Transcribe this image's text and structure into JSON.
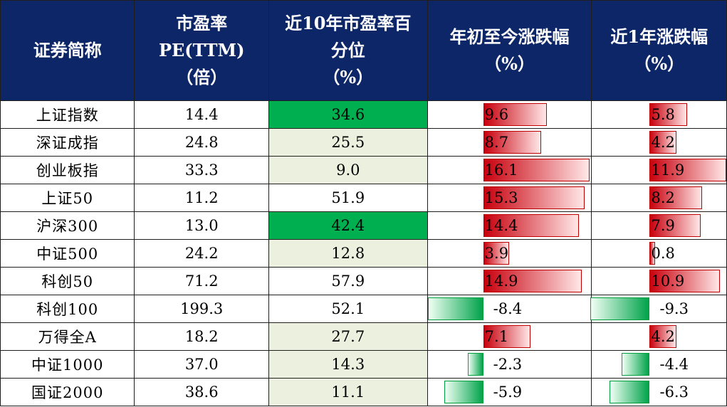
{
  "headers": [
    [
      "证券简称"
    ],
    [
      "市盈率",
      "PE(TTM)",
      "（倍）"
    ],
    [
      "近10年市盈率百",
      "分位",
      "（%）"
    ],
    [
      "年初至今涨跌幅",
      "（%）"
    ],
    [
      "近1年涨跌幅",
      "（%）"
    ]
  ],
  "rows": [
    {
      "name": "上证指数",
      "pe": "14.4",
      "pct": "34.6",
      "pct_fill": "dark",
      "ytd": "9.6",
      "yr": "5.8"
    },
    {
      "name": "深证成指",
      "pe": "24.8",
      "pct": "25.5",
      "pct_fill": "light",
      "ytd": "8.7",
      "yr": "4.2"
    },
    {
      "name": "创业板指",
      "pe": "33.3",
      "pct": "9.0",
      "pct_fill": "light",
      "ytd": "16.1",
      "yr": "11.9"
    },
    {
      "name": "上证50",
      "pe": "11.2",
      "pct": "51.9",
      "pct_fill": "white",
      "ytd": "15.3",
      "yr": "8.2"
    },
    {
      "name": "沪深300",
      "pe": "13.0",
      "pct": "42.4",
      "pct_fill": "dark",
      "ytd": "14.4",
      "yr": "7.9"
    },
    {
      "name": "中证500",
      "pe": "24.2",
      "pct": "12.8",
      "pct_fill": "light",
      "ytd": "3.9",
      "yr": "0.8"
    },
    {
      "name": "科创50",
      "pe": "71.2",
      "pct": "57.9",
      "pct_fill": "white",
      "ytd": "14.9",
      "yr": "10.9"
    },
    {
      "name": "科创100",
      "pe": "199.3",
      "pct": "52.1",
      "pct_fill": "white",
      "ytd": "-8.4",
      "yr": "-9.3"
    },
    {
      "name": "万得全A",
      "pe": "18.2",
      "pct": "27.7",
      "pct_fill": "light",
      "ytd": "7.1",
      "yr": "4.2"
    },
    {
      "name": "中证1000",
      "pe": "37.0",
      "pct": "14.3",
      "pct_fill": "light",
      "ytd": "-2.3",
      "yr": "-4.4"
    },
    {
      "name": "国证2000",
      "pe": "38.6",
      "pct": "11.1",
      "pct_fill": "light",
      "ytd": "-5.9",
      "yr": "-6.3"
    }
  ],
  "colors": {
    "header_bg": "#0c2668",
    "pct_dark": "#00b050",
    "pct_light": "#ebf1de",
    "bar_positive": "#c8000d",
    "bar_negative": "#00a34a"
  }
}
